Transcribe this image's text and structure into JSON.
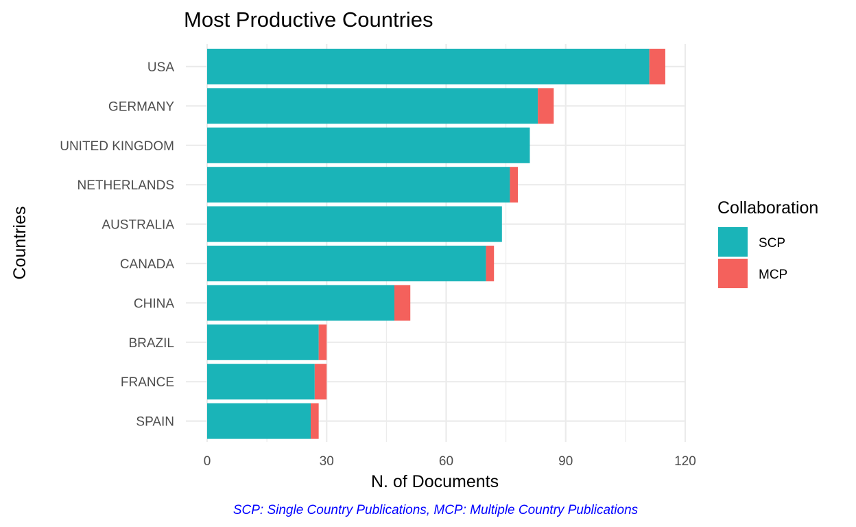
{
  "chart_data": {
    "type": "bar",
    "orientation": "horizontal",
    "stacked": true,
    "title": "Most Productive Countries",
    "xlabel": "N. of Documents",
    "ylabel": "Countries",
    "xlim": [
      0,
      120
    ],
    "x_ticks": [
      0,
      30,
      60,
      90,
      120
    ],
    "grid": true,
    "categories": [
      "USA",
      "GERMANY",
      "UNITED KINGDOM",
      "NETHERLANDS",
      "AUSTRALIA",
      "CANADA",
      "CHINA",
      "BRAZIL",
      "FRANCE",
      "SPAIN"
    ],
    "series": [
      {
        "name": "SCP",
        "color": "#1AB4B8",
        "values": [
          111,
          83,
          81,
          76,
          74,
          70,
          47,
          28,
          27,
          26
        ]
      },
      {
        "name": "MCP",
        "color": "#F4615C",
        "values": [
          4,
          4,
          0,
          2,
          0,
          2,
          4,
          2,
          3,
          2
        ]
      }
    ],
    "legend": {
      "title": "Collaboration",
      "position": "right"
    },
    "caption": "SCP: Single Country Publications, MCP: Multiple Country Publications",
    "caption_color": "#0000FF"
  }
}
